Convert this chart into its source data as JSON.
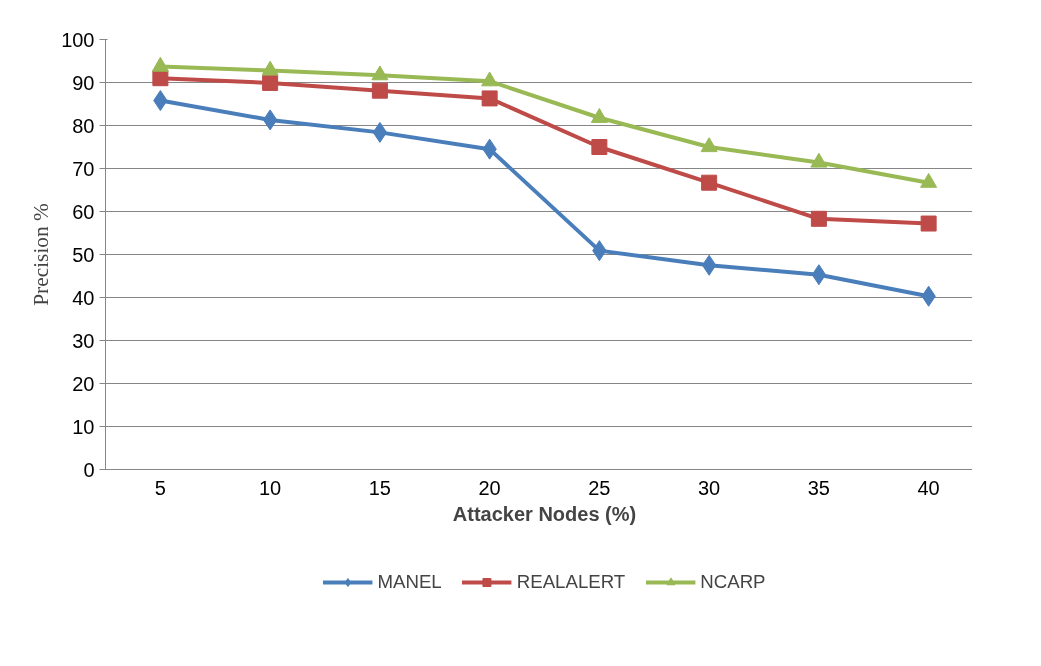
{
  "chart_data": {
    "type": "line",
    "xlabel": "Attacker Nodes (%)",
    "ylabel": "Precision %",
    "categories": [
      "5",
      "10",
      "15",
      "20",
      "25",
      "30",
      "35",
      "40"
    ],
    "ylim": [
      0,
      100
    ],
    "yticks": [
      0,
      10,
      20,
      30,
      40,
      50,
      60,
      70,
      80,
      90,
      100
    ],
    "grid": "y",
    "legend": "bottom",
    "line_style": "solid",
    "series": [
      {
        "name": "MANEL",
        "color": "#4a7ebb",
        "marker": "diamond",
        "values": [
          85.8,
          81.3,
          78.4,
          74.5,
          50.9,
          47.5,
          45.3,
          40.3
        ]
      },
      {
        "name": "REALALERT",
        "color": "#be4b48",
        "marker": "square",
        "values": [
          91,
          89.9,
          88.1,
          86.3,
          75,
          66.7,
          58.3,
          57.2
        ]
      },
      {
        "name": "NCARP",
        "color": "#98b954",
        "marker": "triangle",
        "values": [
          93.7,
          92.8,
          91.7,
          90.3,
          81.8,
          75,
          71.4,
          66.7
        ]
      }
    ]
  }
}
